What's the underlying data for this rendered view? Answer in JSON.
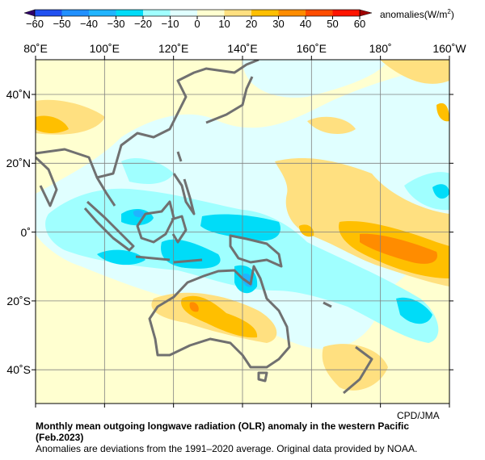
{
  "colorbar": {
    "unit_label": "anomalies(W/m",
    "unit_sup": "2",
    "unit_close": ")",
    "ticks": [
      "−60",
      "−50",
      "−40",
      "−30",
      "−20",
      "−10",
      "0",
      "10",
      "20",
      "30",
      "40",
      "50",
      "60"
    ],
    "colors": [
      "#2050f0",
      "#2090ff",
      "#20b4ff",
      "#00dcf8",
      "#a0ffff",
      "#e0ffff",
      "#ffffd0",
      "#ffe080",
      "#ffbf00",
      "#ff8c00",
      "#ff4c00",
      "#ff1400"
    ],
    "under_color": "#30006a",
    "over_color": "#a00000"
  },
  "map": {
    "lon_labels": [
      "80˚E",
      "100˚E",
      "120˚E",
      "140˚E",
      "160˚E",
      "180˚",
      "160˚W"
    ],
    "lat_labels": [
      "40˚N",
      "20˚N",
      "0˚",
      "20˚S",
      "40˚S"
    ],
    "credit": "CPD/JMA"
  },
  "caption": {
    "title": "Monthly mean outgoing longwave radiation (OLR) anomaly in the western Pacific",
    "period": "(Feb.2023)",
    "note": "Anomalies are deviations from the 1991–2020 average. Original data provided by NOAA."
  }
}
